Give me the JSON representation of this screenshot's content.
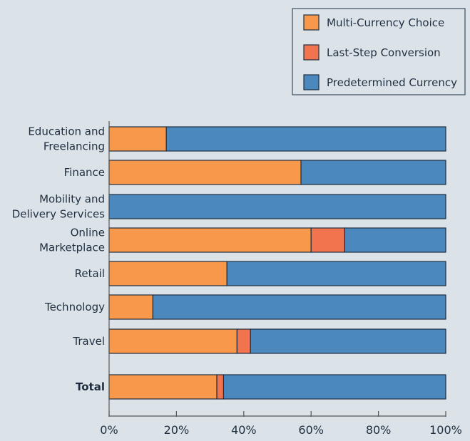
{
  "chart_data": {
    "type": "bar",
    "orientation": "horizontal",
    "stacked": true,
    "categories": [
      [
        "Education and",
        "Freelancing"
      ],
      [
        "Finance"
      ],
      [
        "Mobility and",
        "Delivery Services"
      ],
      [
        "Online",
        "Marketplace"
      ],
      [
        "Retail"
      ],
      [
        "Technology"
      ],
      [
        "Travel"
      ],
      [
        "Total"
      ]
    ],
    "series": [
      {
        "name": "Multi-Currency Choice",
        "color": "#F7984B",
        "values": [
          17,
          57,
          0,
          60,
          35,
          13,
          38,
          32
        ]
      },
      {
        "name": "Last-Step Conversion",
        "color": "#F2744F",
        "values": [
          0,
          0,
          0,
          10,
          0,
          0,
          4,
          2
        ]
      },
      {
        "name": "Predetermined Currency",
        "color": "#4A88BE",
        "values": [
          83,
          43,
          100,
          30,
          65,
          87,
          58,
          66
        ]
      }
    ],
    "xlim": [
      0,
      100
    ],
    "xticks": [
      "0%",
      "20%",
      "40%",
      "60%",
      "80%",
      "100%"
    ],
    "xtick_values": [
      0,
      20,
      40,
      60,
      80,
      100
    ],
    "legend_position": "top-right",
    "grid": false,
    "bold_categories": [
      "Total"
    ]
  }
}
